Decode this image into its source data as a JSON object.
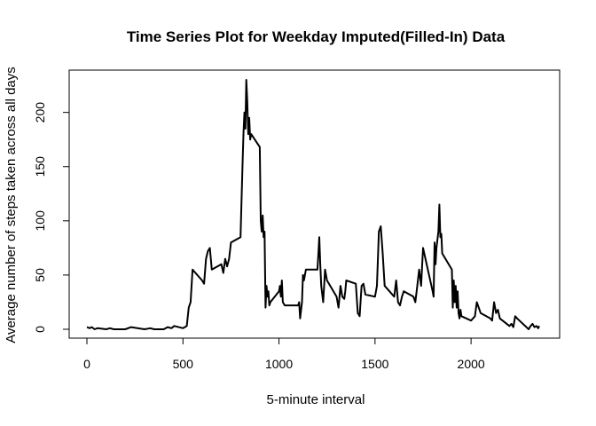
{
  "chart_data": {
    "type": "line",
    "title": "Time Series Plot for Weekday Imputed(Filled-In) Data",
    "xlabel": "5-minute interval",
    "ylabel": "Average number of steps taken across all days",
    "xlim": [
      0,
      2355
    ],
    "ylim": [
      0,
      230
    ],
    "xticks": [
      0,
      500,
      1000,
      1500,
      2000
    ],
    "xtick_labels": [
      "0",
      "500",
      "1000",
      "1500",
      "2000"
    ],
    "yticks": [
      0,
      50,
      100,
      150,
      200
    ],
    "ytick_labels": [
      "0",
      "50",
      "100",
      "150",
      "200"
    ],
    "grid": false,
    "legend": "none",
    "line_color": "#000000",
    "series": [
      {
        "x": [
          0,
          15,
          25,
          40,
          55,
          100,
          120,
          140,
          200,
          230,
          300,
          330,
          350,
          400,
          420,
          440,
          455,
          500,
          510,
          520,
          530,
          540,
          550,
          600,
          610,
          620,
          630,
          640,
          650,
          700,
          710,
          720,
          730,
          740,
          750,
          800,
          810,
          815,
          820,
          825,
          830,
          835,
          840,
          845,
          850,
          855,
          900,
          905,
          910,
          915,
          920,
          925,
          930,
          935,
          940,
          945,
          950,
          955,
          1000,
          1005,
          1010,
          1015,
          1020,
          1030,
          1040,
          1100,
          1105,
          1110,
          1115,
          1120,
          1125,
          1130,
          1140,
          1150,
          1200,
          1205,
          1210,
          1215,
          1220,
          1230,
          1240,
          1250,
          1300,
          1310,
          1320,
          1330,
          1340,
          1345,
          1350,
          1400,
          1410,
          1420,
          1430,
          1440,
          1450,
          1500,
          1510,
          1520,
          1530,
          1540,
          1545,
          1550,
          1600,
          1610,
          1620,
          1630,
          1640,
          1650,
          1700,
          1710,
          1720,
          1730,
          1740,
          1750,
          1800,
          1805,
          1810,
          1815,
          1820,
          1830,
          1835,
          1840,
          1845,
          1850,
          1900,
          1905,
          1910,
          1915,
          1920,
          1925,
          1930,
          1935,
          1940,
          1945,
          1950,
          2000,
          2010,
          2020,
          2030,
          2040,
          2050,
          2100,
          2110,
          2120,
          2130,
          2140,
          2150,
          2200,
          2210,
          2220,
          2230,
          2240,
          2300,
          2310,
          2320,
          2330,
          2340,
          2350,
          2355
        ],
        "y": [
          2,
          1,
          2,
          0,
          1,
          0,
          1,
          0,
          0,
          2,
          0,
          1,
          0,
          0,
          2,
          1,
          3,
          1,
          2,
          3,
          20,
          25,
          55,
          45,
          42,
          65,
          72,
          75,
          55,
          60,
          52,
          65,
          58,
          65,
          80,
          85,
          150,
          180,
          200,
          185,
          230,
          210,
          180,
          195,
          175,
          180,
          168,
          100,
          90,
          105,
          85,
          90,
          20,
          40,
          30,
          35,
          22,
          25,
          35,
          40,
          30,
          45,
          25,
          22,
          22,
          22,
          25,
          10,
          18,
          25,
          50,
          45,
          55,
          55,
          55,
          70,
          85,
          60,
          40,
          25,
          55,
          45,
          30,
          20,
          40,
          30,
          28,
          35,
          45,
          42,
          15,
          12,
          40,
          42,
          32,
          30,
          40,
          90,
          95,
          70,
          55,
          40,
          30,
          45,
          25,
          22,
          30,
          35,
          30,
          25,
          40,
          55,
          40,
          75,
          35,
          30,
          80,
          60,
          75,
          90,
          115,
          85,
          88,
          70,
          55,
          20,
          45,
          25,
          40,
          20,
          35,
          15,
          10,
          18,
          12,
          8,
          10,
          12,
          25,
          20,
          15,
          10,
          8,
          25,
          15,
          18,
          10,
          3,
          5,
          2,
          12,
          10,
          0,
          3,
          5,
          2,
          3,
          1,
          3
        ]
      }
    ]
  }
}
